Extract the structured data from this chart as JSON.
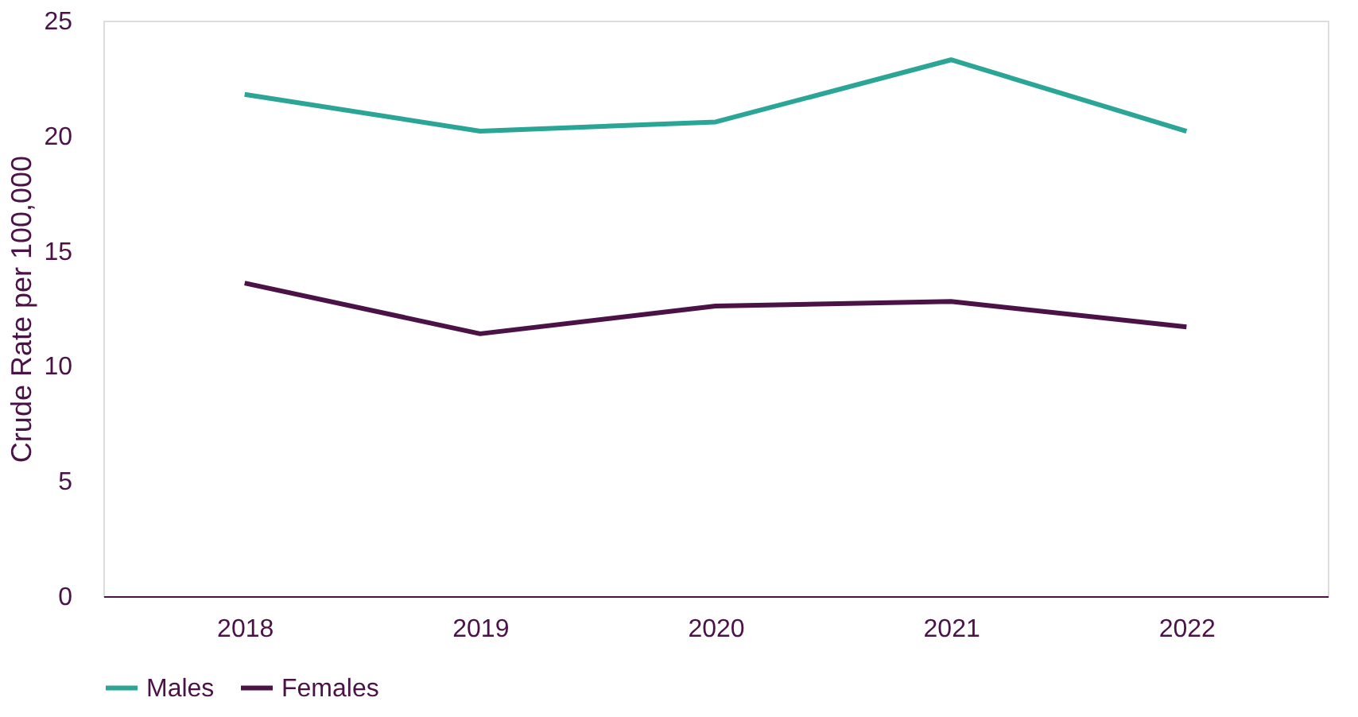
{
  "chart_data": {
    "type": "line",
    "ylabel": "Crude Rate per 100,000",
    "categories": [
      "2018",
      "2019",
      "2020",
      "2021",
      "2022"
    ],
    "series": [
      {
        "name": "Males",
        "color": "#2aa596",
        "values": [
          21.8,
          20.2,
          20.6,
          23.3,
          20.2
        ]
      },
      {
        "name": "Females",
        "color": "#4b1248",
        "values": [
          13.6,
          11.4,
          12.6,
          12.8,
          11.7
        ]
      }
    ],
    "ylim": [
      0,
      25
    ],
    "yticks": [
      0,
      5,
      10,
      15,
      20,
      25
    ],
    "grid": false,
    "legend": "bottom",
    "marker": "none",
    "line_style": "solid"
  }
}
